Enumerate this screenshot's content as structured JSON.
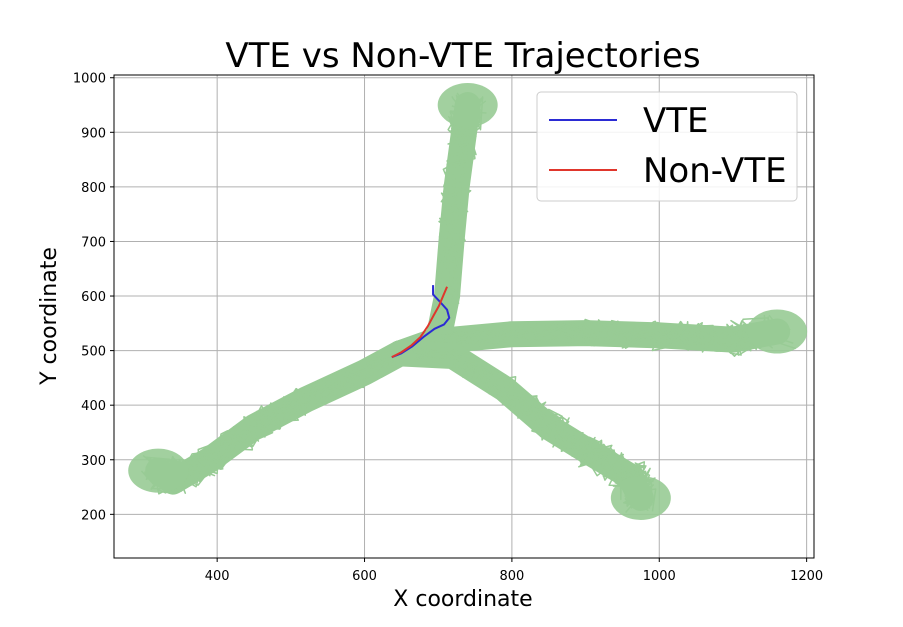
{
  "chart_data": {
    "type": "line",
    "title": "VTE vs Non-VTE Trajectories",
    "xlabel": "X coordinate",
    "ylabel": "Y coordinate",
    "xlim": [
      260,
      1210
    ],
    "ylim": [
      120,
      1005
    ],
    "xticks": [
      400,
      600,
      800,
      1000,
      1200
    ],
    "yticks": [
      200,
      300,
      400,
      500,
      600,
      700,
      800,
      900,
      1000
    ],
    "grid": true,
    "legend_position": "top-right",
    "background_trajectories": {
      "color": "#98cb95",
      "arms": [
        {
          "name": "north",
          "path": [
            [
              648,
              495
            ],
            [
              700,
              520
            ],
            [
              712,
              600
            ],
            [
              718,
              700
            ],
            [
              725,
              800
            ],
            [
              735,
              900
            ],
            [
              740,
              950
            ]
          ]
        },
        {
          "name": "east",
          "path": [
            [
              648,
              495
            ],
            [
              720,
              520
            ],
            [
              800,
              530
            ],
            [
              900,
              532
            ],
            [
              1000,
              528
            ],
            [
              1100,
              520
            ],
            [
              1160,
              535
            ]
          ]
        },
        {
          "name": "southeast",
          "path": [
            [
              648,
              495
            ],
            [
              720,
              490
            ],
            [
              790,
              430
            ],
            [
              850,
              360
            ],
            [
              910,
              310
            ],
            [
              960,
              270
            ],
            [
              975,
              230
            ]
          ]
        },
        {
          "name": "southwest",
          "path": [
            [
              648,
              495
            ],
            [
              600,
              460
            ],
            [
              520,
              410
            ],
            [
              450,
              360
            ],
            [
              390,
              300
            ],
            [
              340,
              260
            ],
            [
              320,
              280
            ]
          ]
        }
      ]
    },
    "series": [
      {
        "name": "VTE",
        "color": "#2b2bd4",
        "x": [
          637,
          650,
          665,
          680,
          695,
          708,
          715,
          712,
          702,
          693,
          693
        ],
        "y": [
          488,
          495,
          508,
          525,
          540,
          548,
          560,
          575,
          590,
          603,
          620
        ]
      },
      {
        "name": "Non-VTE",
        "color": "#e0362c",
        "x": [
          637,
          650,
          664,
          676,
          686,
          694,
          701,
          706,
          712
        ],
        "y": [
          488,
          497,
          510,
          525,
          545,
          565,
          582,
          598,
          617
        ]
      }
    ]
  }
}
